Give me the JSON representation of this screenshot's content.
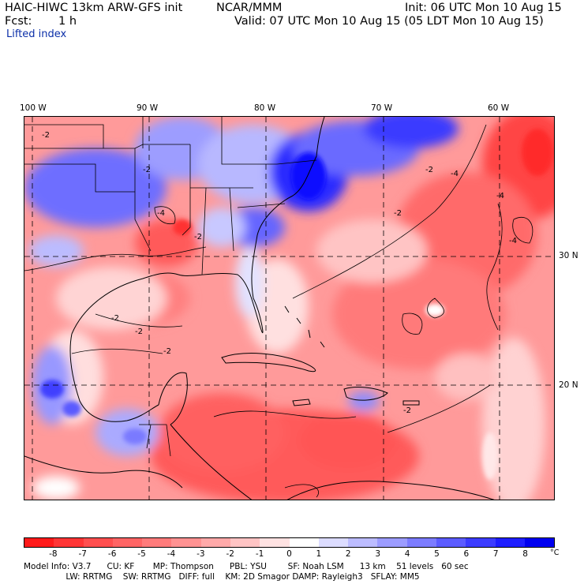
{
  "header": {
    "model_title": "HAIC-HIWC 13km ARW-GFS init",
    "institution": "NCAR/MMM",
    "init_time": "Init: 06 UTC Mon 10 Aug 15",
    "forecast_label": "Fcst:",
    "forecast_hour": "1 h",
    "valid_time": "Valid: 07 UTC Mon 10 Aug 15 (05 LDT Mon 10 Aug 15)",
    "field_name": "Lifted index"
  },
  "map": {
    "longitude_labels": [
      "100 W",
      "90 W",
      "80 W",
      "70 W",
      "60 W"
    ],
    "latitude_labels": [
      "30 N",
      "20 N"
    ],
    "contour_labels": [
      "-2",
      "-4"
    ]
  },
  "colorbar": {
    "tick_labels": [
      "-8",
      "-7",
      "-6",
      "-5",
      "-4",
      "-3",
      "-2",
      "-1",
      "0",
      "1",
      "2",
      "3",
      "4",
      "5",
      "6",
      "7",
      "8"
    ],
    "unit": "°C",
    "colors": [
      "#ff1a1a",
      "#ff3535",
      "#ff4f4f",
      "#ff6565",
      "#ff7b7b",
      "#ff9292",
      "#ffa9a9",
      "#ffc4c4",
      "#ffe2e2",
      "#ffffff",
      "#dcdcff",
      "#bcbcff",
      "#9c9cff",
      "#7c7cff",
      "#5c5cff",
      "#3c3cff",
      "#1e1eff",
      "#0000f0"
    ]
  },
  "model_info": {
    "line1": "Model Info: V3.7      CU: KF       MP: Thompson      PBL: YSU        SF: Noah LSM      13 km    51 levels   60 sec",
    "line2": "                LW: RRTMG    SW: RRTMG   DIFF: full    KM: 2D Smagor DAMP: Rayleigh3   SFLAY: MM5"
  }
}
